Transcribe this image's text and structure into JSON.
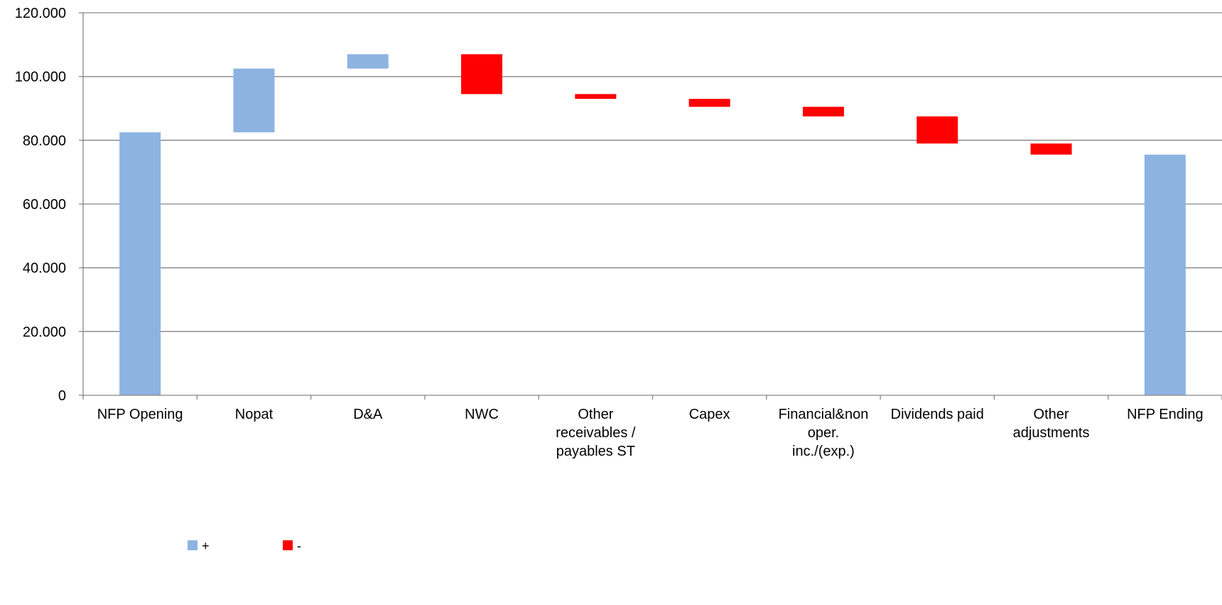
{
  "chart_data": {
    "type": "bar",
    "subtype": "waterfall",
    "title": "",
    "xlabel": "",
    "ylabel": "",
    "ylim": [
      0,
      120000
    ],
    "yticks": [
      0,
      20000,
      40000,
      60000,
      80000,
      100000,
      120000
    ],
    "ytick_labels": [
      "0",
      "20.000",
      "40.000",
      "60.000",
      "80.000",
      "100.000",
      "120.000"
    ],
    "grid": true,
    "legend_position": "bottom-left",
    "categories": [
      [
        "NFP Opening"
      ],
      [
        "Nopat"
      ],
      [
        "D&A"
      ],
      [
        "NWC"
      ],
      [
        "Other",
        "receivables /",
        "payables ST"
      ],
      [
        "Capex"
      ],
      [
        "Financial&non",
        "oper.",
        "inc./(exp.)"
      ],
      [
        "Dividends paid"
      ],
      [
        "Other",
        "adjustments"
      ],
      [
        "NFP Ending"
      ]
    ],
    "series": [
      {
        "name": "+",
        "color": "#8DB3E2",
        "bars": [
          {
            "index": 0,
            "start": 0,
            "end": 82500
          },
          {
            "index": 1,
            "start": 82500,
            "end": 102500
          },
          {
            "index": 2,
            "start": 102500,
            "end": 107000
          },
          {
            "index": 9,
            "start": 0,
            "end": 75500
          }
        ]
      },
      {
        "name": "-",
        "color": "#FF0000",
        "bars": [
          {
            "index": 3,
            "start": 107000,
            "end": 94500
          },
          {
            "index": 4,
            "start": 94500,
            "end": 93000
          },
          {
            "index": 5,
            "start": 93000,
            "end": 90500
          },
          {
            "index": 6,
            "start": 90500,
            "end": 87500
          },
          {
            "index": 7,
            "start": 87500,
            "end": 79000
          },
          {
            "index": 8,
            "start": 79000,
            "end": 75500
          }
        ]
      }
    ]
  }
}
